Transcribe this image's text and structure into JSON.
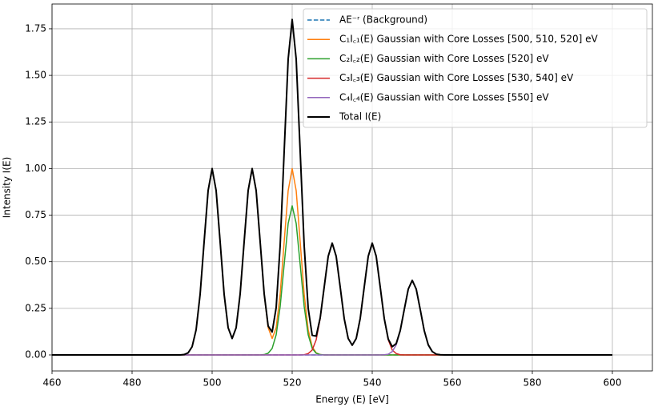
{
  "chart_data": {
    "type": "line",
    "xlabel": "Energy (E) [eV]",
    "ylabel": "Intensity I(E)",
    "x": [
      460,
      490,
      491,
      492,
      493,
      494,
      495,
      496,
      497,
      498,
      499,
      500,
      501,
      502,
      503,
      504,
      505,
      506,
      507,
      508,
      509,
      510,
      511,
      512,
      513,
      514,
      515,
      516,
      517,
      518,
      519,
      520,
      521,
      522,
      523,
      524,
      525,
      526,
      527,
      528,
      529,
      530,
      531,
      532,
      533,
      534,
      535,
      536,
      537,
      538,
      539,
      540,
      541,
      542,
      543,
      544,
      545,
      546,
      547,
      548,
      549,
      550,
      551,
      552,
      553,
      554,
      555,
      556,
      557,
      558,
      559,
      560,
      600
    ],
    "series": [
      {
        "name": "AE⁻ʳ (Background)",
        "color": "#1f77b4",
        "dashed": true,
        "values": [
          0,
          0,
          0,
          0,
          0,
          0,
          0,
          0,
          0,
          0,
          0,
          0,
          0,
          0,
          0,
          0,
          0,
          0,
          0,
          0,
          0,
          0,
          0,
          0,
          0,
          0,
          0,
          0,
          0,
          0,
          0,
          0,
          0,
          0,
          0,
          0,
          0,
          0,
          0,
          0,
          0,
          0,
          0,
          0,
          0,
          0,
          0,
          0,
          0,
          0,
          0,
          0,
          0,
          0,
          0,
          0,
          0,
          0,
          0,
          0,
          0,
          0,
          0,
          0,
          0,
          0,
          0,
          0,
          0,
          0,
          0,
          0,
          0
        ]
      },
      {
        "name": "C₁I꜀₁(E) Gaussian with Core Losses [500, 510, 520] eV",
        "color": "#ff7f0e",
        "values": [
          0,
          0,
          0,
          0,
          0.002,
          0.011,
          0.044,
          0.135,
          0.325,
          0.607,
          0.882,
          1,
          0.882,
          0.607,
          0.325,
          0.146,
          0.088,
          0.146,
          0.327,
          0.607,
          0.882,
          1,
          0.882,
          0.607,
          0.327,
          0.146,
          0.088,
          0.146,
          0.327,
          0.607,
          0.882,
          1,
          0.882,
          0.607,
          0.325,
          0.135,
          0.044,
          0.011,
          0.002,
          0,
          0,
          0,
          0,
          0,
          0,
          0,
          0,
          0,
          0,
          0,
          0,
          0,
          0,
          0,
          0,
          0,
          0,
          0,
          0,
          0,
          0,
          0,
          0,
          0,
          0,
          0,
          0,
          0,
          0,
          0,
          0,
          0,
          0
        ]
      },
      {
        "name": "C₂I꜀₂(E) Gaussian with Core Losses [520] eV",
        "color": "#2ca02c",
        "values": [
          0,
          0,
          0,
          0,
          0,
          0,
          0,
          0,
          0,
          0,
          0,
          0,
          0,
          0,
          0,
          0,
          0,
          0,
          0,
          0,
          0,
          0,
          0,
          0,
          0.002,
          0.009,
          0.035,
          0.108,
          0.26,
          0.485,
          0.706,
          0.8,
          0.706,
          0.485,
          0.26,
          0.108,
          0.035,
          0.009,
          0.002,
          0,
          0,
          0,
          0,
          0,
          0,
          0,
          0,
          0,
          0,
          0,
          0,
          0,
          0,
          0,
          0,
          0,
          0,
          0,
          0,
          0,
          0,
          0,
          0,
          0,
          0,
          0,
          0,
          0,
          0,
          0,
          0,
          0,
          0
        ]
      },
      {
        "name": "C₃I꜀₃(E) Gaussian with Core Losses [530, 540] eV",
        "color": "#d62728",
        "values": [
          0,
          0,
          0,
          0,
          0,
          0,
          0,
          0,
          0,
          0,
          0,
          0,
          0,
          0,
          0,
          0,
          0,
          0,
          0,
          0,
          0,
          0,
          0,
          0,
          0,
          0,
          0,
          0,
          0,
          0,
          0,
          0,
          0,
          0,
          0.001,
          0.007,
          0.026,
          0.081,
          0.195,
          0.364,
          0.529,
          0.6,
          0.529,
          0.364,
          0.195,
          0.088,
          0.052,
          0.088,
          0.196,
          0.364,
          0.529,
          0.6,
          0.529,
          0.364,
          0.195,
          0.081,
          0.026,
          0.007,
          0.001,
          0,
          0,
          0,
          0,
          0,
          0,
          0,
          0,
          0,
          0,
          0,
          0,
          0,
          0
        ]
      },
      {
        "name": "C₄I꜀₄(E) Gaussian with Core Losses [550] eV",
        "color": "#9467bd",
        "values": [
          0,
          0,
          0,
          0,
          0,
          0,
          0,
          0,
          0,
          0,
          0,
          0,
          0,
          0,
          0,
          0,
          0,
          0,
          0,
          0,
          0,
          0,
          0,
          0,
          0,
          0,
          0,
          0,
          0,
          0,
          0,
          0,
          0,
          0,
          0,
          0,
          0,
          0,
          0,
          0,
          0,
          0,
          0,
          0,
          0,
          0,
          0,
          0,
          0,
          0,
          0,
          0,
          0,
          0,
          0.001,
          0.004,
          0.018,
          0.054,
          0.13,
          0.243,
          0.353,
          0.4,
          0.353,
          0.243,
          0.13,
          0.054,
          0.018,
          0.004,
          0.001,
          0,
          0,
          0,
          0
        ]
      },
      {
        "name": "Total I(E)",
        "color": "#000000",
        "width": 2,
        "values": [
          0,
          0,
          0,
          0,
          0.002,
          0.011,
          0.044,
          0.135,
          0.325,
          0.607,
          0.882,
          1,
          0.882,
          0.607,
          0.325,
          0.146,
          0.088,
          0.146,
          0.327,
          0.607,
          0.882,
          1,
          0.882,
          0.607,
          0.329,
          0.155,
          0.123,
          0.254,
          0.587,
          1.092,
          1.588,
          1.8,
          1.588,
          1.092,
          0.586,
          0.25,
          0.105,
          0.101,
          0.199,
          0.364,
          0.529,
          0.6,
          0.529,
          0.364,
          0.195,
          0.088,
          0.052,
          0.088,
          0.196,
          0.364,
          0.529,
          0.6,
          0.529,
          0.364,
          0.196,
          0.085,
          0.044,
          0.061,
          0.131,
          0.243,
          0.353,
          0.4,
          0.353,
          0.243,
          0.13,
          0.054,
          0.018,
          0.004,
          0.001,
          0,
          0,
          0,
          0
        ]
      }
    ],
    "xlim": [
      460,
      610
    ],
    "xticks": [
      460,
      480,
      500,
      520,
      540,
      560,
      580,
      600
    ],
    "ylim": [
      -0.086,
      1.883
    ],
    "yticks": [
      {
        "value": 0,
        "label": "0.00"
      },
      {
        "value": 0.25,
        "label": "0.25"
      },
      {
        "value": 0.5,
        "label": "0.50"
      },
      {
        "value": 0.75,
        "label": "0.75"
      },
      {
        "value": 1,
        "label": "1.00"
      },
      {
        "value": 1.25,
        "label": "1.25"
      },
      {
        "value": 1.5,
        "label": "1.50"
      },
      {
        "value": 1.75,
        "label": "1.75"
      }
    ],
    "grid": true,
    "legend": "upper right"
  }
}
